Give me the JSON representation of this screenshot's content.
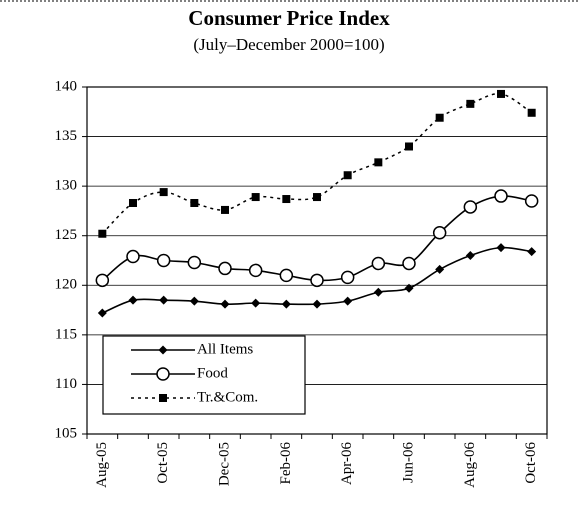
{
  "chart_data": {
    "type": "line",
    "title": "Consumer Price Index",
    "subtitle": "(July–December 2000=100)",
    "categories": [
      "Aug-05",
      null,
      "Oct-05",
      null,
      "Dec-05",
      null,
      "Feb-06",
      null,
      "Apr-06",
      null,
      "Jun-06",
      null,
      "Aug-06",
      null,
      "Oct-06"
    ],
    "series": [
      {
        "name": "All Items",
        "color": "#000000",
        "marker": "diamond",
        "dashed": false,
        "values": [
          117.2,
          118.5,
          118.5,
          118.4,
          118.1,
          118.2,
          118.1,
          118.1,
          118.4,
          119.3,
          119.7,
          121.6,
          123.0,
          123.8,
          123.4
        ]
      },
      {
        "name": "Food",
        "color": "#000000",
        "marker": "circle",
        "dashed": false,
        "values": [
          120.5,
          122.9,
          122.5,
          122.3,
          121.7,
          121.5,
          121.0,
          120.5,
          120.8,
          122.2,
          122.2,
          125.3,
          127.9,
          129.0,
          128.5
        ]
      },
      {
        "name": "Tr.&Com.",
        "color": "#000000",
        "marker": "square",
        "dashed": true,
        "values": [
          125.2,
          128.3,
          129.4,
          128.3,
          127.6,
          128.9,
          128.7,
          128.9,
          131.1,
          132.4,
          134.0,
          136.9,
          138.3,
          139.3,
          137.4
        ]
      }
    ],
    "ylim": [
      105,
      140
    ],
    "yticks": [
      105,
      110,
      115,
      120,
      125,
      130,
      135,
      140
    ],
    "grid": true,
    "legend": "lower left"
  }
}
